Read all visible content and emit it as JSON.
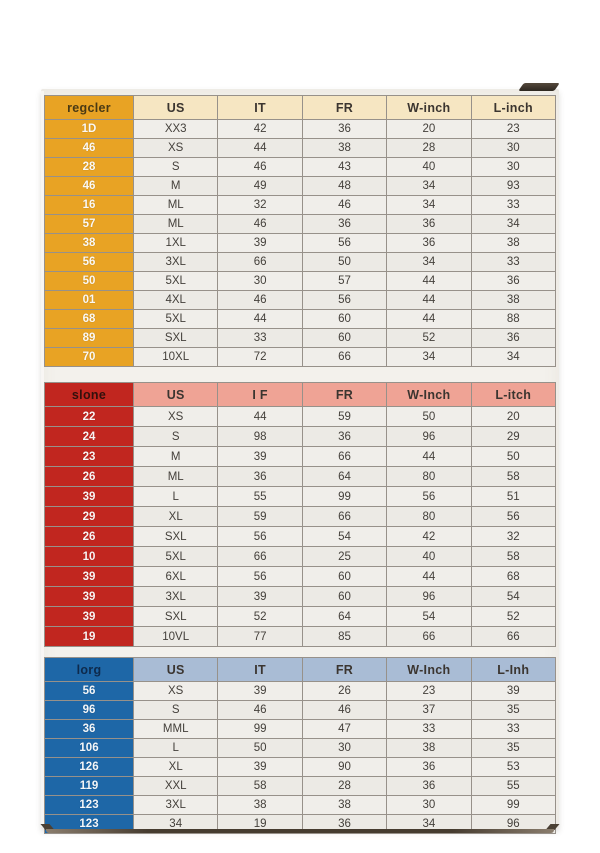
{
  "card": {
    "background": "#F3F1EC",
    "cell_background": "#EFEDE9",
    "grid_border_color": "#97918A",
    "value_text_color": "#44403B",
    "size_text_color": "#FFFFFF"
  },
  "tables": [
    {
      "name": "regular",
      "label": "regcler",
      "accent_color": "#E8A324",
      "header_bg": "#F6E6C2",
      "label_color": "#4A3A14",
      "columns": [
        "US",
        "IT",
        "FR",
        "W-inch",
        "L-inch"
      ],
      "rows": [
        [
          "1D",
          "XX3",
          "42",
          "36",
          "20",
          "23"
        ],
        [
          "46",
          "XS",
          "44",
          "38",
          "28",
          "30"
        ],
        [
          "28",
          "S",
          "46",
          "43",
          "40",
          "30"
        ],
        [
          "46",
          "M",
          "49",
          "48",
          "34",
          "93"
        ],
        [
          "16",
          "ML",
          "32",
          "46",
          "34",
          "33"
        ],
        [
          "57",
          "ML",
          "46",
          "36",
          "36",
          "34"
        ],
        [
          "38",
          "1XL",
          "39",
          "56",
          "36",
          "38"
        ],
        [
          "56",
          "3XL",
          "66",
          "50",
          "34",
          "33"
        ],
        [
          "50",
          "5XL",
          "30",
          "57",
          "44",
          "36"
        ],
        [
          "01",
          "4XL",
          "46",
          "56",
          "44",
          "38"
        ],
        [
          "68",
          "5XL",
          "44",
          "60",
          "44",
          "88"
        ],
        [
          "89",
          "SXL",
          "33",
          "60",
          "52",
          "36"
        ],
        [
          "70",
          "10XL",
          "72",
          "66",
          "34",
          "34"
        ]
      ]
    },
    {
      "name": "slone",
      "label": "slone",
      "accent_color": "#C1261F",
      "header_bg": "#EFA395",
      "label_color": "#33100C",
      "columns": [
        "US",
        "I F",
        "FR",
        "W-Inch",
        "L-itch"
      ],
      "rows": [
        [
          "22",
          "XS",
          "44",
          "59",
          "50",
          "20"
        ],
        [
          "24",
          "S",
          "98",
          "36",
          "96",
          "29"
        ],
        [
          "23",
          "M",
          "39",
          "66",
          "44",
          "50"
        ],
        [
          "26",
          "ML",
          "36",
          "64",
          "80",
          "58"
        ],
        [
          "39",
          "L",
          "55",
          "99",
          "56",
          "51"
        ],
        [
          "29",
          "XL",
          "59",
          "66",
          "80",
          "56"
        ],
        [
          "26",
          "SXL",
          "56",
          "54",
          "42",
          "32"
        ],
        [
          "10",
          "5XL",
          "66",
          "25",
          "40",
          "58"
        ],
        [
          "39",
          "6XL",
          "56",
          "60",
          "44",
          "68"
        ],
        [
          "39",
          "3XL",
          "39",
          "60",
          "96",
          "54"
        ],
        [
          "39",
          "SXL",
          "52",
          "64",
          "54",
          "52"
        ],
        [
          "19",
          "10VL",
          "77",
          "85",
          "66",
          "66"
        ]
      ]
    },
    {
      "name": "long",
      "label": "lorg",
      "accent_color": "#1E67A7",
      "header_bg": "#A9BCD5",
      "label_color": "#0E2A4C",
      "columns": [
        "US",
        "IT",
        "FR",
        "W-Inch",
        "L-Inh"
      ],
      "rows": [
        [
          "56",
          "XS",
          "39",
          "26",
          "23",
          "39"
        ],
        [
          "96",
          "S",
          "46",
          "46",
          "37",
          "35"
        ],
        [
          "36",
          "MML",
          "99",
          "47",
          "33",
          "33"
        ],
        [
          "106",
          "L",
          "50",
          "30",
          "38",
          "35"
        ],
        [
          "126",
          "XL",
          "39",
          "90",
          "36",
          "53"
        ],
        [
          "119",
          "XXL",
          "58",
          "28",
          "36",
          "55"
        ],
        [
          "123",
          "3XL",
          "38",
          "38",
          "30",
          "99"
        ],
        [
          "123",
          "34",
          "19",
          "36",
          "34",
          "96"
        ]
      ]
    }
  ]
}
